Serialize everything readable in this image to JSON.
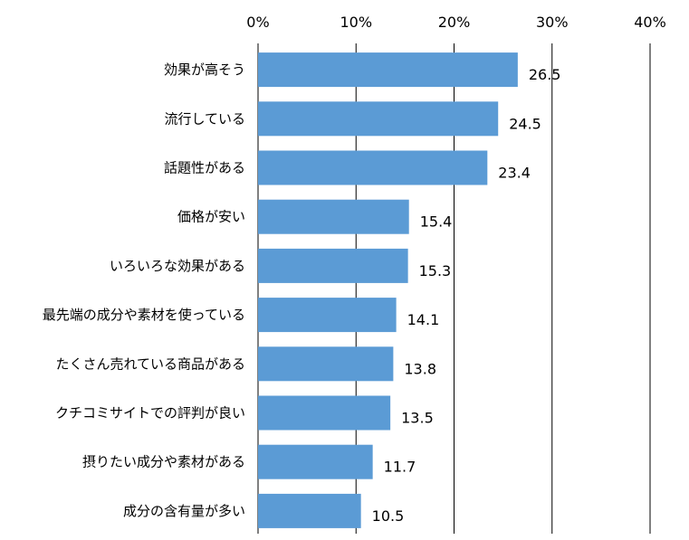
{
  "chart_data": {
    "type": "bar",
    "orientation": "horizontal",
    "categories": [
      "効果が高そう",
      "流行している",
      "話題性がある",
      "価格が安い",
      "いろいろな効果がある",
      "最先端の成分や素材を使っている",
      "たくさん売れている商品がある",
      "クチコミサイトでの評判が良い",
      "摂りたい成分や素材がある",
      "成分の含有量が多い"
    ],
    "values": [
      26.5,
      24.5,
      23.4,
      15.4,
      15.3,
      14.1,
      13.8,
      13.5,
      11.7,
      10.5
    ],
    "data_labels": [
      "26.5",
      "24.5",
      "23.4",
      "15.4",
      "15.3",
      "14.1",
      "13.8",
      "13.5",
      "11.7",
      "10.5"
    ],
    "xlim": [
      0,
      40
    ],
    "x_ticks": [
      "0%",
      "10%",
      "20%",
      "30%",
      "40%"
    ],
    "title": "",
    "xlabel": "",
    "ylabel": "",
    "grid": true,
    "tick_position": "top",
    "bar_color": "#5b9bd5"
  }
}
